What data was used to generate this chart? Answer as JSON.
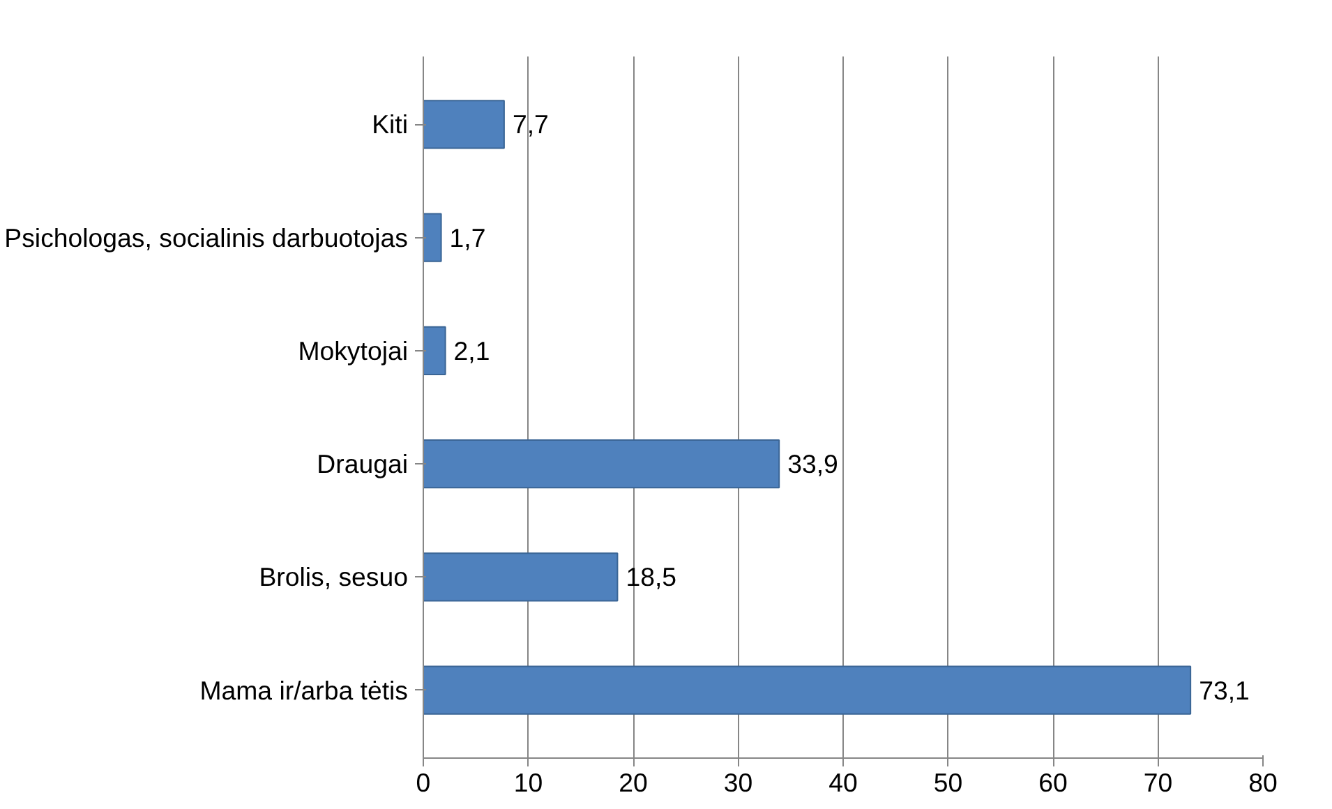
{
  "chart_data": {
    "type": "bar",
    "orientation": "horizontal",
    "categories": [
      "Kiti",
      "Psichologas, socialinis darbuotojas",
      "Mokytojai",
      "Draugai",
      "Brolis, sesuo",
      "Mama ir/arba tėtis"
    ],
    "values": [
      7.7,
      1.7,
      2.1,
      33.9,
      18.5,
      73.1
    ],
    "value_labels": [
      "7,7",
      "1,7",
      "2,1",
      "33,9",
      "18,5",
      "73,1"
    ],
    "color": "#4f81bd",
    "xlim": [
      0,
      80
    ],
    "xticks": [
      0,
      10,
      20,
      30,
      40,
      50,
      60,
      70,
      80
    ],
    "grid": "x"
  }
}
